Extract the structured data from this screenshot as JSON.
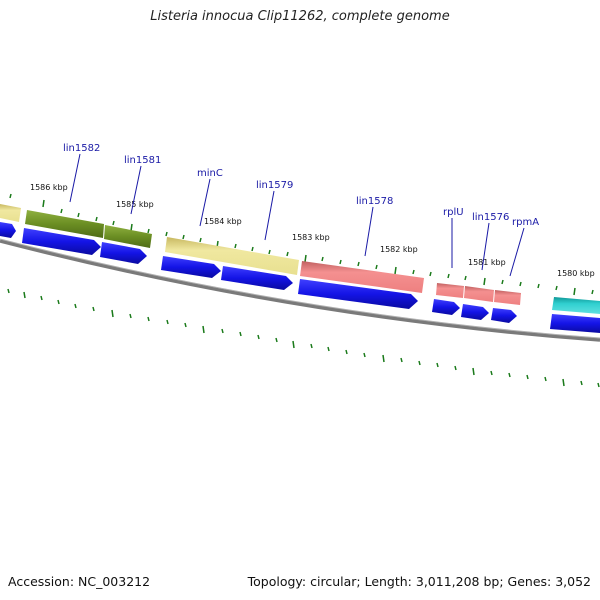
{
  "title": "Listeria innocua Clip11262, complete genome",
  "footer": {
    "accession": "Accession: NC_003212",
    "summary": "Topology: circular; Length: 3,011,208 bp; Genes: 3,052"
  },
  "gene_labels": [
    "lin1582",
    "lin1581",
    "minC",
    "lin1579",
    "lin1578",
    "rplU",
    "lin1576",
    "rpmA"
  ],
  "kbp_labels": [
    "1586 kbp",
    "1585 kbp",
    "1584 kbp",
    "1583 kbp",
    "1582 kbp",
    "1581 kbp",
    "1580 kbp"
  ],
  "colors": {
    "backbone": "#7a7a7a",
    "cds": "#1414e6",
    "tick": "#1a7a1a",
    "gene_label": "#1a1aa6",
    "feature_olive": "#6b8e23",
    "feature_khaki": "#e8e090",
    "feature_salmon": "#ee8080",
    "feature_teal": "#20c0c0"
  }
}
